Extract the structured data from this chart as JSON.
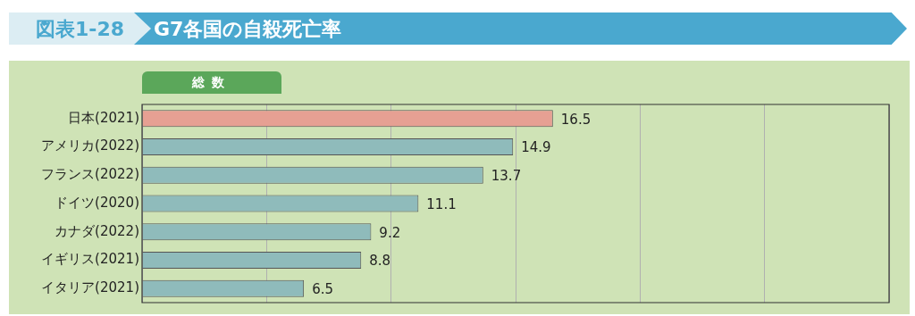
{
  "chart_data": {
    "type": "bar",
    "orientation": "horizontal",
    "title": "G7各国の自殺死亡率",
    "subtitle": "総数",
    "annotations": [
      "図表1-28"
    ],
    "categories": [
      "日本(2021)",
      "アメリカ(2022)",
      "フランス(2022)",
      "ドイツ(2020)",
      "カナダ(2022)",
      "イギリス(2021)",
      "イタリア(2021)"
    ],
    "values": [
      16.5,
      14.9,
      13.7,
      11.1,
      9.2,
      8.8,
      6.5
    ],
    "colors": [
      "#e6a093",
      "#8fbbbb",
      "#8fbbbb",
      "#8fbbbb",
      "#8fbbbb",
      "#8fbbbb",
      "#8fbbbb"
    ],
    "xlim": [
      0,
      30
    ],
    "xticks": [
      {
        "value": 0,
        "label": null
      },
      {
        "value": 5,
        "label": null
      },
      {
        "value": 10,
        "label": null
      },
      {
        "value": 15,
        "label": null
      },
      {
        "value": 20,
        "label": null
      },
      {
        "value": 25,
        "label": null
      },
      {
        "value": 30,
        "label": null
      }
    ],
    "grid": "x",
    "data_labels": true,
    "legend": false
  }
}
